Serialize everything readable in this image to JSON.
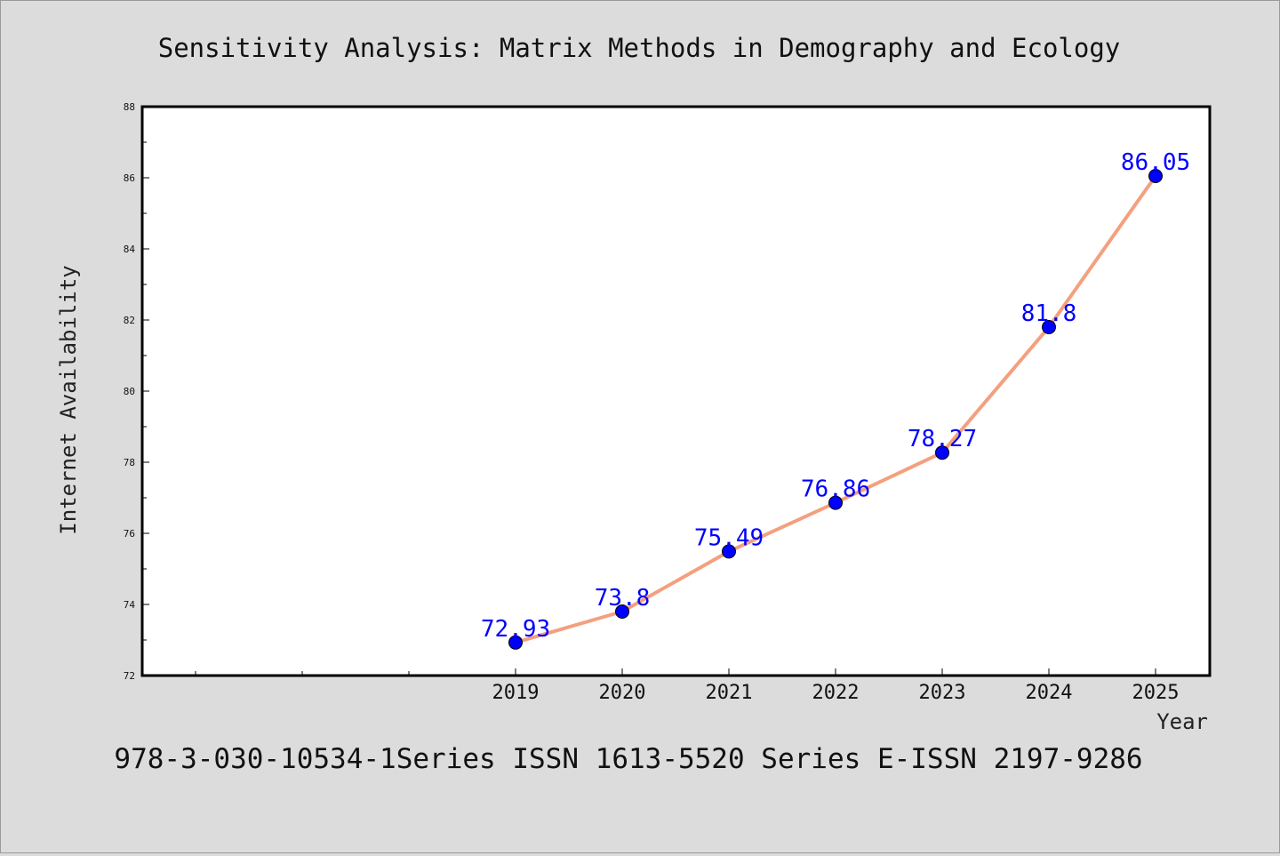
{
  "chart_data": {
    "type": "line",
    "title": "Sensitivity Analysis: Matrix Methods in Demography and Ecology",
    "xlabel": "Year",
    "ylabel": "Internet Availability",
    "categories": [
      "2019",
      "2020",
      "2021",
      "2022",
      "2023",
      "2024",
      "2025"
    ],
    "x_empty_slots_before_data": 3,
    "series": [
      {
        "values": [
          72.93,
          73.8,
          75.49,
          76.86,
          78.27,
          81.8,
          86.05
        ],
        "data_labels": [
          "72.93",
          "73.8",
          "75.49",
          "76.86",
          "78.27",
          "81.8",
          "86.05"
        ],
        "line_color": "#f4a07e",
        "marker_color": "#0000ff"
      }
    ],
    "ylim": [
      72,
      88
    ],
    "yticks": [
      "72",
      "74",
      "76",
      "78",
      "80",
      "82",
      "84",
      "86",
      "88"
    ],
    "grid": false,
    "legend": "none",
    "label_color": "#0000ff"
  },
  "footer": {
    "text": "978-3-030-10534-1Series ISSN 1613-5520 Series E-ISSN 2197-9286"
  },
  "colors": {
    "background": "#dcdcdc",
    "plot_background": "#ffffff",
    "frame": "#000000"
  }
}
